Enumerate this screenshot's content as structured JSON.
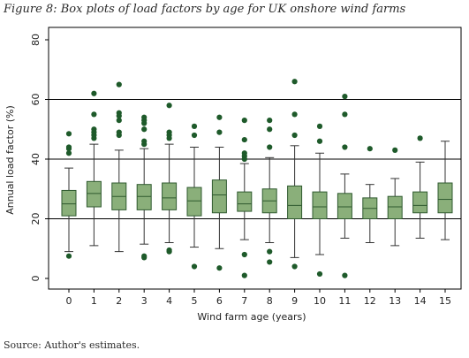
{
  "figure_title": "Figure 8: Box plots of load factors by age for UK onshore wind farms",
  "source_note": "Source: Author's estimates.",
  "colors": {
    "box_fill": "#8aaf7a",
    "box_stroke": "#2f5a2f",
    "outlier": "#1e5a2a",
    "grid": "#000000"
  },
  "chart_data": {
    "type": "boxplot",
    "xlabel": "Wind farm age (years)",
    "ylabel": "Annual load factor (%)",
    "ylim": [
      0,
      80
    ],
    "yticks": [
      0,
      20,
      40,
      60,
      80
    ],
    "grid": "horizontal",
    "categories": [
      "0",
      "1",
      "2",
      "3",
      "4",
      "5",
      "6",
      "7",
      "8",
      "9",
      "10",
      "11",
      "12",
      "13",
      "14",
      "15"
    ],
    "boxes": [
      {
        "whisker_low": 9,
        "q1": 21,
        "median": 25,
        "q3": 29.5,
        "whisker_high": 37,
        "outliers": [
          7.5,
          42,
          43.5,
          44,
          48.5
        ]
      },
      {
        "whisker_low": 11,
        "q1": 24,
        "median": 28.5,
        "q3": 32.5,
        "whisker_high": 45,
        "outliers": [
          47,
          48,
          49,
          50,
          55,
          62
        ]
      },
      {
        "whisker_low": 9,
        "q1": 23,
        "median": 27.5,
        "q3": 32,
        "whisker_high": 43,
        "outliers": [
          48,
          49,
          53,
          54.5,
          55.5,
          65
        ]
      },
      {
        "whisker_low": 11.5,
        "q1": 23,
        "median": 27.5,
        "q3": 31.5,
        "whisker_high": 43.5,
        "outliers": [
          7,
          7.5,
          45,
          46,
          50,
          52,
          53,
          54
        ]
      },
      {
        "whisker_low": 12,
        "q1": 23,
        "median": 27,
        "q3": 32,
        "whisker_high": 45,
        "outliers": [
          9,
          9.5,
          47,
          48,
          49,
          58
        ]
      },
      {
        "whisker_low": 10.5,
        "q1": 21,
        "median": 26,
        "q3": 30.5,
        "whisker_high": 44,
        "outliers": [
          4,
          48,
          51
        ]
      },
      {
        "whisker_low": 10,
        "q1": 22,
        "median": 28,
        "q3": 33,
        "whisker_high": 44,
        "outliers": [
          3.5,
          49,
          54
        ]
      },
      {
        "whisker_low": 13,
        "q1": 22.5,
        "median": 25,
        "q3": 29,
        "whisker_high": 38.5,
        "outliers": [
          1,
          8,
          40,
          41,
          42,
          46.5,
          53
        ]
      },
      {
        "whisker_low": 12,
        "q1": 22,
        "median": 26,
        "q3": 30,
        "whisker_high": 40.5,
        "outliers": [
          5.5,
          9,
          44,
          50,
          53
        ]
      },
      {
        "whisker_low": 7,
        "q1": 20,
        "median": 24.5,
        "q3": 31,
        "whisker_high": 44.5,
        "outliers": [
          4,
          48,
          55,
          66
        ]
      },
      {
        "whisker_low": 8,
        "q1": 20,
        "median": 24,
        "q3": 29,
        "whisker_high": 42,
        "outliers": [
          1.5,
          46,
          51
        ]
      },
      {
        "whisker_low": 13.5,
        "q1": 20,
        "median": 24,
        "q3": 28.5,
        "whisker_high": 35,
        "outliers": [
          1,
          44,
          55,
          61
        ]
      },
      {
        "whisker_low": 12,
        "q1": 20,
        "median": 23.5,
        "q3": 27,
        "whisker_high": 31.5,
        "outliers": [
          43.5
        ]
      },
      {
        "whisker_low": 11,
        "q1": 20,
        "median": 24,
        "q3": 27.5,
        "whisker_high": 33.5,
        "outliers": [
          43
        ]
      },
      {
        "whisker_low": 13.5,
        "q1": 22,
        "median": 24.5,
        "q3": 29,
        "whisker_high": 39,
        "outliers": [
          47
        ]
      },
      {
        "whisker_low": 13,
        "q1": 22,
        "median": 26.5,
        "q3": 32,
        "whisker_high": 46,
        "outliers": []
      }
    ]
  }
}
